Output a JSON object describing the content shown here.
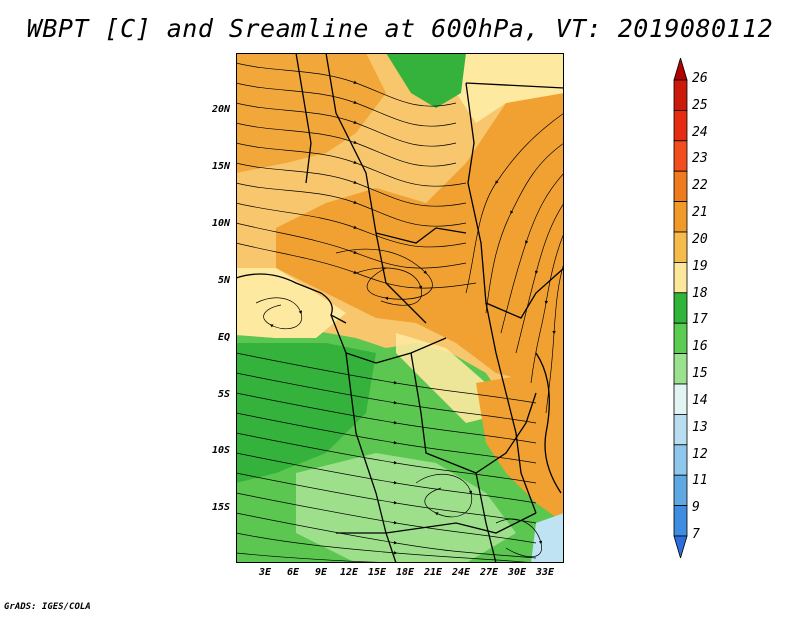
{
  "title": "WBPT [C] and Sreamline at 600hPa, VT: 2019080112",
  "footer": "GrADS: IGES/COLA",
  "lat_labels": [
    "20N",
    "15N",
    "10N",
    "5N",
    "EQ",
    "5S",
    "10S",
    "15S"
  ],
  "lon_labels": [
    "3E",
    "6E",
    "9E",
    "12E",
    "15E",
    "18E",
    "21E",
    "24E",
    "27E",
    "30E",
    "33E"
  ],
  "colorbar": {
    "labels": [
      "26",
      "25",
      "24",
      "23",
      "22",
      "21",
      "20",
      "19",
      "18",
      "17",
      "16",
      "15",
      "14",
      "13",
      "12",
      "11",
      "9",
      "7"
    ],
    "colors": [
      "#b30000",
      "#cc1a0a",
      "#e52c12",
      "#f24d1d",
      "#f07a1e",
      "#f09a2a",
      "#f5bb4c",
      "#fde79a",
      "#2fb53a",
      "#5bcb52",
      "#9be28e",
      "#e2f5f2",
      "#b9def2",
      "#8fc8ec",
      "#5ea9e4",
      "#3e8de0",
      "#2a6fdd"
    ]
  },
  "map": {
    "colors": {
      "orange": "#f1a132",
      "light_orange": "#f7c66d",
      "pale_yellow": "#fde9a0",
      "green": "#5bc650",
      "dark_green": "#34b23c",
      "light_green": "#9edf8c",
      "pale_blue": "#bfe3f2"
    }
  }
}
